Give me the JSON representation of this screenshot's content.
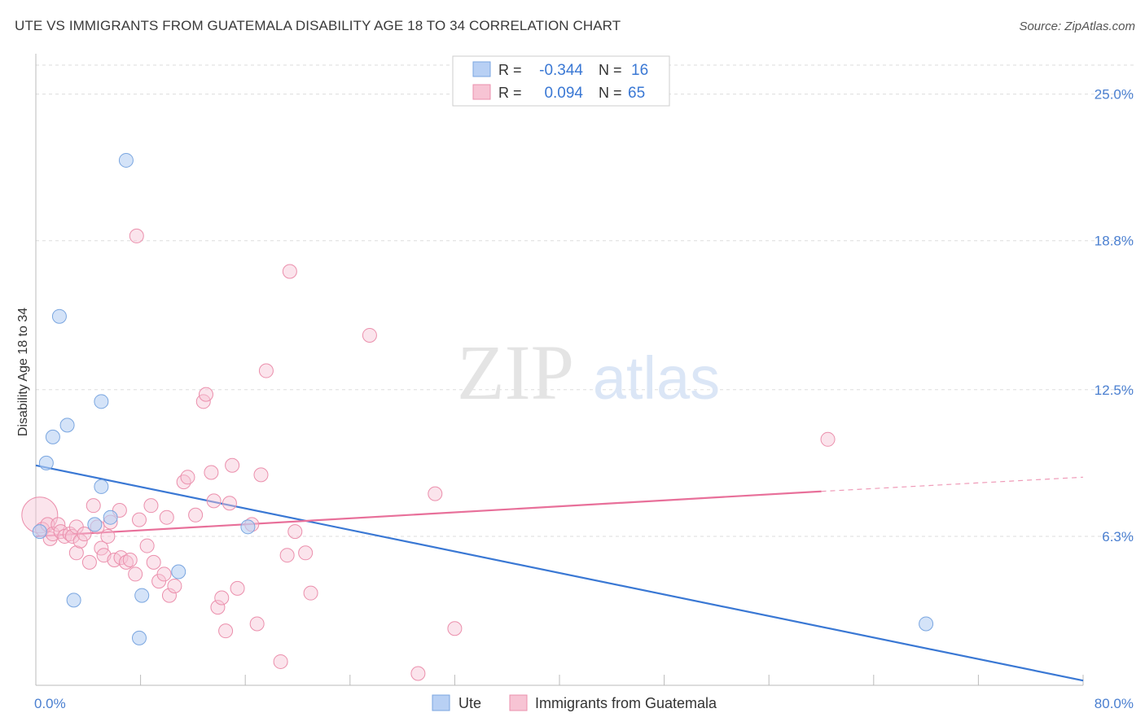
{
  "header": {
    "title": "UTE VS IMMIGRANTS FROM GUATEMALA DISABILITY AGE 18 TO 34 CORRELATION CHART",
    "source": "Source: ZipAtlas.com"
  },
  "watermark": {
    "zip": "ZIP",
    "atlas": "atlas"
  },
  "colors": {
    "ute_fill": "#b8d0f4",
    "ute_stroke": "#7aa6e0",
    "ute_line": "#3a78d4",
    "guat_fill": "#f7c4d4",
    "guat_stroke": "#eb8fac",
    "guat_line": "#e8709a",
    "tick_label": "#4a7fd0",
    "grid": "#dddddd"
  },
  "stats": {
    "ute": {
      "r_label": "R =",
      "r_value": "-0.344",
      "n_label": "N =",
      "n_value": "16"
    },
    "guat": {
      "r_label": "R =",
      "r_value": "0.094",
      "n_label": "N =",
      "n_value": "65"
    }
  },
  "chart_data": {
    "type": "scatter",
    "title": "UTE VS IMMIGRANTS FROM GUATEMALA DISABILITY AGE 18 TO 34 CORRELATION CHART",
    "xlabel": "",
    "ylabel": "Disability Age 18 to 34",
    "xlim": [
      0,
      80
    ],
    "ylim": [
      0,
      26.5
    ],
    "x_tick_labels": [
      "0.0%",
      "80.0%"
    ],
    "y_ticks": [
      6.3,
      12.5,
      18.8,
      25.0
    ],
    "y_tick_labels": [
      "6.3%",
      "12.5%",
      "18.8%",
      "25.0%"
    ],
    "legend": [
      "Ute",
      "Immigrants from Guatemala"
    ],
    "series": [
      {
        "name": "Ute",
        "points": [
          [
            0.3,
            6.5
          ],
          [
            0.8,
            9.4
          ],
          [
            1.3,
            10.5
          ],
          [
            1.8,
            15.6
          ],
          [
            2.4,
            11.0
          ],
          [
            2.9,
            3.6
          ],
          [
            5.0,
            12.0
          ],
          [
            5.0,
            8.4
          ],
          [
            4.5,
            6.8
          ],
          [
            5.7,
            7.1
          ],
          [
            6.9,
            22.2
          ],
          [
            8.1,
            3.8
          ],
          [
            7.9,
            2.0
          ],
          [
            10.9,
            4.8
          ],
          [
            16.2,
            6.7
          ],
          [
            68.0,
            2.6
          ]
        ],
        "trend": {
          "x": [
            0,
            80
          ],
          "y": [
            9.3,
            0.2
          ]
        }
      },
      {
        "name": "Immigrants from Guatemala",
        "points": [
          [
            0.3,
            7.2
          ],
          [
            0.5,
            6.6
          ],
          [
            0.9,
            6.8
          ],
          [
            1.1,
            6.2
          ],
          [
            1.3,
            6.4
          ],
          [
            1.7,
            6.8
          ],
          [
            1.9,
            6.5
          ],
          [
            2.2,
            6.3
          ],
          [
            2.6,
            6.4
          ],
          [
            2.8,
            6.3
          ],
          [
            3.1,
            6.7
          ],
          [
            3.1,
            5.6
          ],
          [
            3.4,
            6.1
          ],
          [
            3.7,
            6.4
          ],
          [
            4.1,
            5.2
          ],
          [
            4.4,
            7.6
          ],
          [
            4.7,
            6.7
          ],
          [
            5.0,
            5.8
          ],
          [
            5.2,
            5.5
          ],
          [
            5.5,
            6.3
          ],
          [
            5.7,
            6.9
          ],
          [
            6.0,
            5.3
          ],
          [
            6.4,
            7.4
          ],
          [
            6.5,
            5.4
          ],
          [
            6.9,
            5.2
          ],
          [
            7.2,
            5.3
          ],
          [
            7.6,
            4.7
          ],
          [
            7.7,
            19.0
          ],
          [
            7.9,
            7.0
          ],
          [
            8.5,
            5.9
          ],
          [
            8.8,
            7.6
          ],
          [
            9.0,
            5.2
          ],
          [
            9.4,
            4.4
          ],
          [
            9.8,
            4.7
          ],
          [
            10.0,
            7.1
          ],
          [
            10.2,
            3.8
          ],
          [
            10.6,
            4.2
          ],
          [
            11.3,
            8.6
          ],
          [
            11.6,
            8.8
          ],
          [
            12.2,
            7.2
          ],
          [
            12.8,
            12.0
          ],
          [
            13.0,
            12.3
          ],
          [
            13.4,
            9.0
          ],
          [
            13.6,
            7.8
          ],
          [
            13.9,
            3.3
          ],
          [
            14.2,
            3.7
          ],
          [
            14.5,
            2.3
          ],
          [
            14.8,
            7.7
          ],
          [
            15.0,
            9.3
          ],
          [
            15.4,
            4.1
          ],
          [
            16.5,
            6.8
          ],
          [
            16.9,
            2.6
          ],
          [
            17.2,
            8.9
          ],
          [
            17.6,
            13.3
          ],
          [
            18.7,
            1.0
          ],
          [
            19.2,
            5.5
          ],
          [
            19.4,
            17.5
          ],
          [
            19.8,
            6.5
          ],
          [
            20.6,
            5.6
          ],
          [
            21.0,
            3.9
          ],
          [
            25.5,
            14.8
          ],
          [
            29.2,
            0.5
          ],
          [
            30.5,
            8.1
          ],
          [
            32.0,
            2.4
          ],
          [
            60.5,
            10.4
          ]
        ],
        "trend": {
          "x": [
            0,
            60
          ],
          "y": [
            6.3,
            8.2
          ]
        },
        "trend_extension": {
          "x": [
            60,
            80
          ],
          "y": [
            8.2,
            8.8
          ]
        }
      }
    ]
  }
}
